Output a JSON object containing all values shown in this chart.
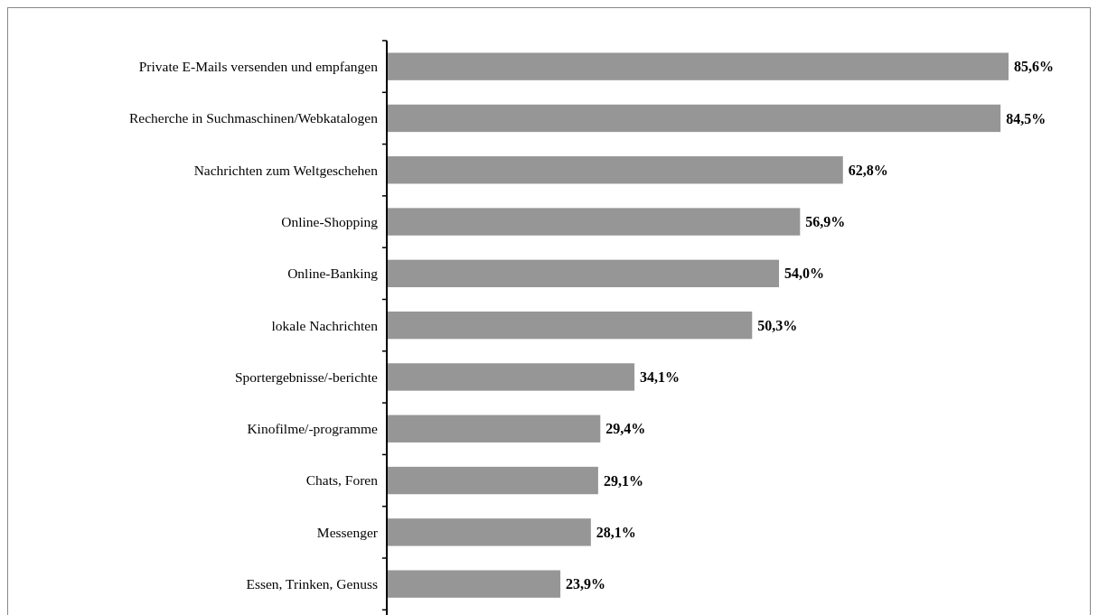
{
  "chart_data": {
    "type": "bar",
    "orientation": "horizontal",
    "categories": [
      "Private E-Mails versenden und empfangen",
      "Recherche in Suchmaschinen/Webkatalogen",
      "Nachrichten zum Weltgeschehen",
      "Online-Shopping",
      "Online-Banking",
      "lokale Nachrichten",
      "Sportergebnisse/-berichte",
      "Kinofilme/-programme",
      "Chats, Foren",
      "Messenger",
      "Essen, Trinken, Genuss"
    ],
    "values": [
      85.6,
      84.5,
      62.8,
      56.9,
      54.0,
      50.3,
      34.1,
      29.4,
      29.1,
      28.1,
      23.9
    ],
    "value_labels": [
      "85,6%",
      "84,5%",
      "62,8%",
      "56,9%",
      "54,0%",
      "50,3%",
      "34,1%",
      "29,4%",
      "29,1%",
      "28,1%",
      "23,9%"
    ],
    "color": "#969696",
    "grid": false
  }
}
